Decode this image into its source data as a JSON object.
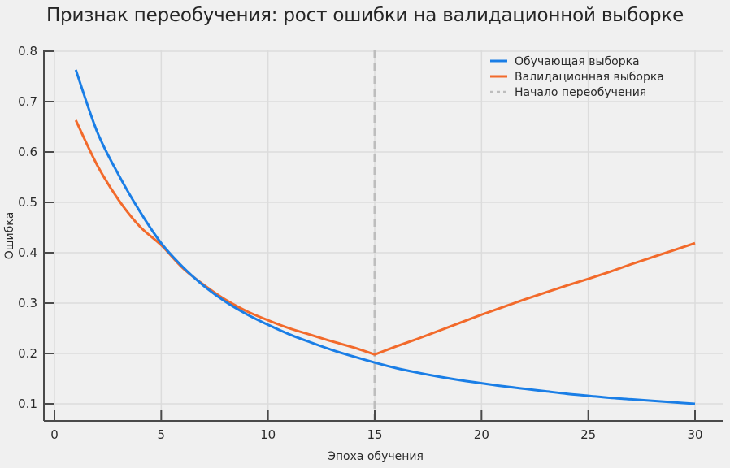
{
  "chart_data": {
    "type": "line",
    "title": "Признак переобучения: рост ошибки на валидационной выборке",
    "xlabel": "Эпоха обучения",
    "ylabel": "Ошибка",
    "xlim": [
      -0.5,
      31.3
    ],
    "ylim": [
      0.065,
      0.8
    ],
    "xticks": [
      0,
      5,
      10,
      15,
      20,
      25,
      30
    ],
    "yticks": [
      0.1,
      0.2,
      0.3,
      0.4,
      0.5,
      0.6,
      0.7,
      0.8
    ],
    "ytick_labels": [
      "0.1",
      "0.2",
      "0.3",
      "0.4",
      "0.5",
      "0.6",
      "0.7",
      "0.8"
    ],
    "grid": true,
    "legend_position": "upper right",
    "x": [
      1,
      2,
      3,
      4,
      5,
      6,
      7,
      8,
      9,
      10,
      11,
      12,
      13,
      14,
      15,
      16,
      17,
      18,
      19,
      20,
      21,
      22,
      23,
      24,
      25,
      26,
      27,
      28,
      29,
      30
    ],
    "series": [
      {
        "name": "Обучающая выборка",
        "color": "#1a7ee6",
        "style": "solid",
        "values": [
          0.763,
          0.64,
          0.555,
          0.482,
          0.419,
          0.372,
          0.334,
          0.303,
          0.278,
          0.257,
          0.238,
          0.222,
          0.207,
          0.194,
          0.182,
          0.171,
          0.162,
          0.154,
          0.147,
          0.141,
          0.135,
          0.13,
          0.125,
          0.12,
          0.116,
          0.112,
          0.109,
          0.106,
          0.103,
          0.1
        ]
      },
      {
        "name": "Валидационная выборка",
        "color": "#f26a2b",
        "style": "solid",
        "values": [
          0.663,
          0.574,
          0.505,
          0.452,
          0.415,
          0.37,
          0.336,
          0.307,
          0.284,
          0.266,
          0.25,
          0.237,
          0.224,
          0.212,
          0.198,
          0.214,
          0.229,
          0.245,
          0.261,
          0.277,
          0.292,
          0.307,
          0.321,
          0.335,
          0.348,
          0.362,
          0.377,
          0.391,
          0.405,
          0.419
        ]
      }
    ],
    "annotations": [
      {
        "type": "vline",
        "x": 15,
        "name": "Начало переобучения",
        "color": "#bdbdbd",
        "style": "dashed"
      }
    ]
  },
  "legend": {
    "items": [
      {
        "label": "Обучающая выборка",
        "color": "#1a7ee6",
        "style": "solid"
      },
      {
        "label": "Валидационная выборка",
        "color": "#f26a2b",
        "style": "solid"
      },
      {
        "label": "Начало переобучения",
        "color": "#bdbdbd",
        "style": "dashed"
      }
    ]
  },
  "colors": {
    "background": "#f0f0f0",
    "grid": "#dcdcdc",
    "axis": "#4a4a4a"
  }
}
